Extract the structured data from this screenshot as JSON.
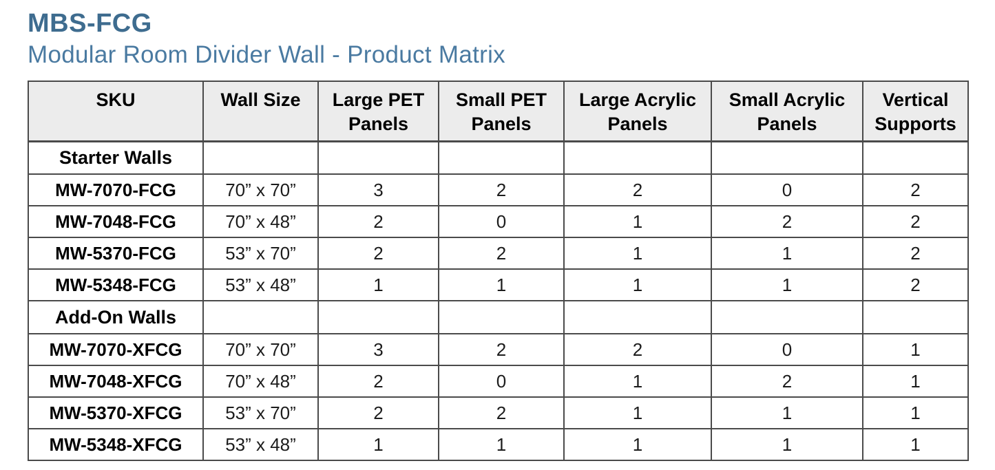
{
  "header": {
    "title": "MBS-FCG",
    "subtitle": "Modular Room Divider Wall - Product Matrix"
  },
  "colors": {
    "title": "#3e6c8f",
    "subtitle": "#4a7aa1",
    "header_bg": "#ececec",
    "border": "#4a4a4a"
  },
  "table": {
    "columns": [
      "SKU",
      "Wall Size",
      "Large PET Panels",
      "Small PET Panels",
      "Large Acrylic Panels",
      "Small Acrylic Panels",
      "Vertical Supports"
    ],
    "sections": [
      {
        "label": "Starter Walls",
        "rows": [
          {
            "sku": "MW-7070-FCG",
            "wall_size": "70” x 70”",
            "values": [
              "3",
              "2",
              "2",
              "0",
              "2"
            ]
          },
          {
            "sku": "MW-7048-FCG",
            "wall_size": "70” x 48”",
            "values": [
              "2",
              "0",
              "1",
              "2",
              "2"
            ]
          },
          {
            "sku": "MW-5370-FCG",
            "wall_size": "53” x 70”",
            "values": [
              "2",
              "2",
              "1",
              "1",
              "2"
            ]
          },
          {
            "sku": "MW-5348-FCG",
            "wall_size": "53” x 48”",
            "values": [
              "1",
              "1",
              "1",
              "1",
              "2"
            ]
          }
        ]
      },
      {
        "label": "Add-On Walls",
        "rows": [
          {
            "sku": "MW-7070-XFCG",
            "wall_size": "70” x 70”",
            "values": [
              "3",
              "2",
              "2",
              "0",
              "1"
            ]
          },
          {
            "sku": "MW-7048-XFCG",
            "wall_size": "70” x 48”",
            "values": [
              "2",
              "0",
              "1",
              "2",
              "1"
            ]
          },
          {
            "sku": "MW-5370-XFCG",
            "wall_size": "53” x 70”",
            "values": [
              "2",
              "2",
              "1",
              "1",
              "1"
            ]
          },
          {
            "sku": "MW-5348-XFCG",
            "wall_size": "53” x 48”",
            "values": [
              "1",
              "1",
              "1",
              "1",
              "1"
            ]
          }
        ]
      }
    ]
  }
}
